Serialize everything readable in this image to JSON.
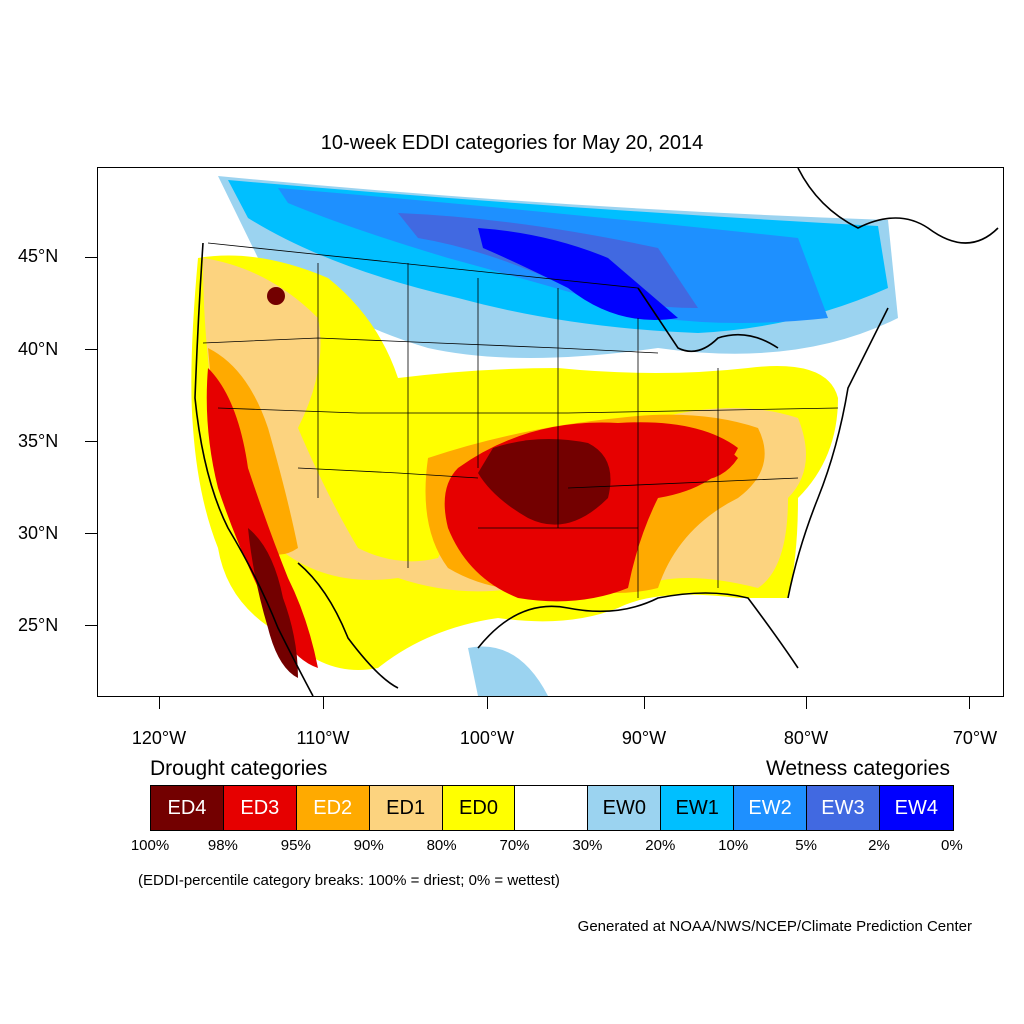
{
  "title": "10-week EDDI categories for May 20, 2014",
  "latitude_labels": [
    "45°N",
    "40°N",
    "35°N",
    "30°N",
    "25°N"
  ],
  "longitude_labels": [
    "120°W",
    "110°W",
    "100°W",
    "90°W",
    "80°W",
    "70°W"
  ],
  "legend": {
    "drought_heading": "Drought categories",
    "wetness_heading": "Wetness categories",
    "categories": [
      {
        "label": "ED4",
        "color": "#730000",
        "text_color": "#ffffff"
      },
      {
        "label": "ED3",
        "color": "#e60000",
        "text_color": "#ffffff"
      },
      {
        "label": "ED2",
        "color": "#ffaa00",
        "text_color": "#ffffff"
      },
      {
        "label": "ED1",
        "color": "#fcd37f",
        "text_color": "#000000"
      },
      {
        "label": "ED0",
        "color": "#ffff00",
        "text_color": "#000000"
      },
      {
        "label": "",
        "color": "#ffffff",
        "text_color": "#000000"
      },
      {
        "label": "EW0",
        "color": "#9bd3f0",
        "text_color": "#000000"
      },
      {
        "label": "EW1",
        "color": "#00bfff",
        "text_color": "#000000"
      },
      {
        "label": "EW2",
        "color": "#1e90ff",
        "text_color": "#ffffff"
      },
      {
        "label": "EW3",
        "color": "#4169e1",
        "text_color": "#ffffff"
      },
      {
        "label": "EW4",
        "color": "#0000ff",
        "text_color": "#ffffff"
      }
    ],
    "percentiles": [
      "100%",
      "98%",
      "95%",
      "90%",
      "80%",
      "70%",
      "30%",
      "20%",
      "10%",
      "5%",
      "2%",
      "0%"
    ]
  },
  "note": "(EDDI-percentile category breaks: 100% = driest; 0% = wettest)",
  "credit": "Generated at NOAA/NWS/NCEP/Climate Prediction Center"
}
